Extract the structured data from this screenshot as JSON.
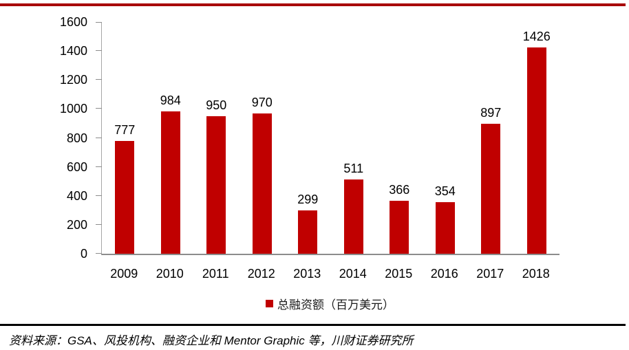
{
  "page": {
    "top_rule_color": "#a80000",
    "bottom_rule_color": "#000000"
  },
  "chart_data": {
    "type": "bar",
    "title": "",
    "categories": [
      "2009",
      "2010",
      "2011",
      "2012",
      "2013",
      "2014",
      "2015",
      "2016",
      "2017",
      "2018"
    ],
    "values": [
      777,
      984,
      950,
      970,
      299,
      511,
      366,
      354,
      897,
      1426
    ],
    "value_labels": [
      "777",
      "984",
      "950",
      "970",
      "299",
      "511",
      "366",
      "354",
      "897",
      "1426"
    ],
    "series_name": "总融资额（百万美元）",
    "xlabel": "",
    "ylabel": "",
    "ylim": [
      0,
      1600
    ],
    "yticks": [
      0,
      200,
      400,
      600,
      800,
      1000,
      1200,
      1400,
      1600
    ],
    "ytick_labels": [
      "0",
      "200",
      "400",
      "600",
      "800",
      "1000",
      "1200",
      "1400",
      "1600"
    ],
    "bar_color": "#c00000",
    "axis_color": "#8c8c8c",
    "grid": false,
    "legend_position": "bottom",
    "value_labels_shown": true
  },
  "legend": {
    "label": "■总融资额（百万美元）",
    "text": "总融资额（百万美元）",
    "marker_color": "#c00000"
  },
  "footer": {
    "source": "资料来源：GSA、风投机构、融资企业和 Mentor Graphic 等，川财证券研究所"
  }
}
